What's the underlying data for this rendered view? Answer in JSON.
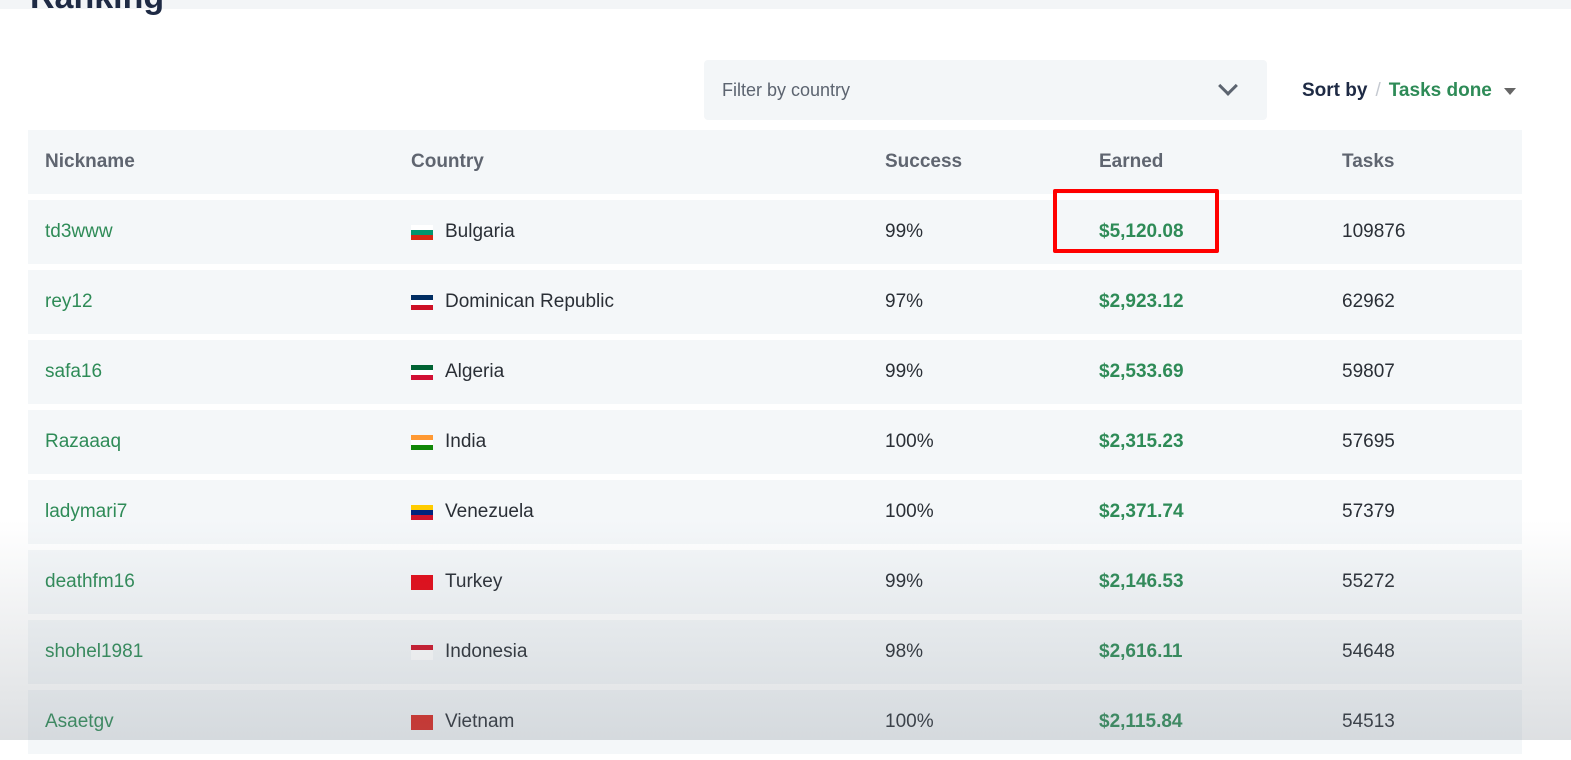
{
  "page_title": "Ranking",
  "filter": {
    "placeholder": "Filter by country"
  },
  "sort": {
    "label": "Sort by",
    "separator": "/",
    "value": "Tasks done"
  },
  "table": {
    "headers": [
      "Nickname",
      "Country",
      "Success",
      "Earned",
      "Tasks"
    ],
    "rows": [
      {
        "nickname": "td3www",
        "country": "Bulgaria",
        "flag": [
          "#ffffff",
          "#00966e",
          "#d62612"
        ],
        "success": "99%",
        "earned": "$5,120.08",
        "tasks": "109876"
      },
      {
        "nickname": "rey12",
        "country": "Dominican Republic",
        "flag": [
          "#002d62",
          "#ffffff",
          "#ce1126"
        ],
        "success": "97%",
        "earned": "$2,923.12",
        "tasks": "62962"
      },
      {
        "nickname": "safa16",
        "country": "Algeria",
        "flag": [
          "#006233",
          "#ffffff",
          "#d21034"
        ],
        "success": "99%",
        "earned": "$2,533.69",
        "tasks": "59807"
      },
      {
        "nickname": "Razaaaq",
        "country": "India",
        "flag": [
          "#ff9933",
          "#ffffff",
          "#138808"
        ],
        "success": "100%",
        "earned": "$2,315.23",
        "tasks": "57695"
      },
      {
        "nickname": "ladymari7",
        "country": "Venezuela",
        "flag": [
          "#ffcc00",
          "#00247d",
          "#cf142b"
        ],
        "success": "100%",
        "earned": "$2,371.74",
        "tasks": "57379"
      },
      {
        "nickname": "deathfm16",
        "country": "Turkey",
        "flag": [
          "#e30a17",
          "#e30a17",
          "#e30a17"
        ],
        "success": "99%",
        "earned": "$2,146.53",
        "tasks": "55272"
      },
      {
        "nickname": "shohel1981",
        "country": "Indonesia",
        "flag": [
          "#ce1126",
          "#ffffff",
          "#ffffff"
        ],
        "success": "98%",
        "earned": "$2,616.11",
        "tasks": "54648"
      },
      {
        "nickname": "Asaetgv",
        "country": "Vietnam",
        "flag": [
          "#da251d",
          "#da251d",
          "#da251d"
        ],
        "success": "100%",
        "earned": "$2,115.84",
        "tasks": "54513"
      }
    ]
  },
  "colors": {
    "accent": "#2e8b57",
    "highlight": "#ff0000",
    "row_bg": "#f4f7f9"
  }
}
